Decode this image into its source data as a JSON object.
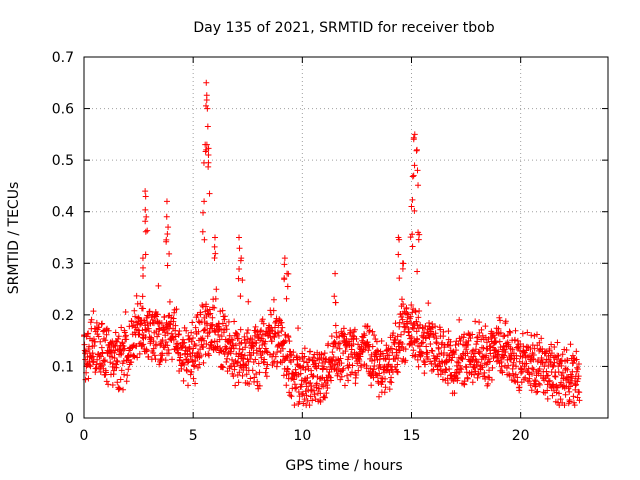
{
  "chart_data": {
    "type": "scatter",
    "title": "Day 135 of 2021, SRMTID for receiver tbob",
    "xlabel": "GPS time / hours",
    "ylabel": "SRMTID / TECUs",
    "xlim": [
      0,
      24
    ],
    "ylim": [
      0,
      0.7
    ],
    "x_ticks": [
      0,
      5,
      10,
      15,
      20
    ],
    "y_ticks": [
      0,
      0.1,
      0.2,
      0.3,
      0.4,
      0.5,
      0.6,
      0.7
    ],
    "x_tick_labels": [
      "0",
      "5",
      "10",
      "15",
      "20"
    ],
    "y_tick_labels": [
      "0",
      "0.1",
      "0.2",
      "0.3",
      "0.4",
      "0.5",
      "0.6",
      "0.7"
    ],
    "grid": true,
    "marker": "+",
    "series": [
      {
        "name": "SRMTID",
        "color": "#ff0000",
        "data_range": [
          0,
          22.7
        ],
        "baseline": [
          [
            0,
            0.12
          ],
          [
            0.5,
            0.14
          ],
          [
            1.0,
            0.13
          ],
          [
            1.5,
            0.1
          ],
          [
            2.0,
            0.13
          ],
          [
            2.5,
            0.18
          ],
          [
            3.0,
            0.16
          ],
          [
            3.5,
            0.15
          ],
          [
            4.0,
            0.17
          ],
          [
            4.5,
            0.13
          ],
          [
            5.0,
            0.12
          ],
          [
            5.5,
            0.17
          ],
          [
            6.0,
            0.17
          ],
          [
            6.5,
            0.14
          ],
          [
            7.0,
            0.12
          ],
          [
            7.5,
            0.11
          ],
          [
            8.0,
            0.12
          ],
          [
            8.5,
            0.15
          ],
          [
            9.0,
            0.16
          ],
          [
            9.5,
            0.08
          ],
          [
            10.0,
            0.07
          ],
          [
            10.5,
            0.08
          ],
          [
            11.0,
            0.08
          ],
          [
            11.5,
            0.13
          ],
          [
            12.0,
            0.12
          ],
          [
            12.5,
            0.12
          ],
          [
            13.0,
            0.13
          ],
          [
            13.5,
            0.1
          ],
          [
            14.0,
            0.11
          ],
          [
            14.5,
            0.16
          ],
          [
            15.0,
            0.17
          ],
          [
            15.5,
            0.15
          ],
          [
            16.0,
            0.13
          ],
          [
            16.5,
            0.12
          ],
          [
            17.0,
            0.1
          ],
          [
            17.5,
            0.12
          ],
          [
            18.0,
            0.13
          ],
          [
            18.5,
            0.12
          ],
          [
            19.0,
            0.14
          ],
          [
            19.5,
            0.13
          ],
          [
            20.0,
            0.1
          ],
          [
            20.5,
            0.11
          ],
          [
            21.0,
            0.1
          ],
          [
            21.5,
            0.09
          ],
          [
            22.0,
            0.08
          ],
          [
            22.7,
            0.08
          ]
        ],
        "peaks": [
          [
            2.7,
            0.31
          ],
          [
            2.8,
            0.44
          ],
          [
            2.85,
            0.39
          ],
          [
            3.8,
            0.42
          ],
          [
            3.85,
            0.37
          ],
          [
            5.5,
            0.42
          ],
          [
            5.55,
            0.53
          ],
          [
            5.6,
            0.65
          ],
          [
            5.65,
            0.6
          ],
          [
            5.7,
            0.51
          ],
          [
            6.0,
            0.35
          ],
          [
            7.1,
            0.35
          ],
          [
            7.2,
            0.31
          ],
          [
            9.2,
            0.31
          ],
          [
            9.3,
            0.28
          ],
          [
            11.5,
            0.28
          ],
          [
            14.4,
            0.35
          ],
          [
            14.6,
            0.3
          ],
          [
            15.0,
            0.41
          ],
          [
            15.1,
            0.47
          ],
          [
            15.15,
            0.55
          ],
          [
            15.25,
            0.52
          ],
          [
            15.3,
            0.36
          ]
        ]
      }
    ]
  }
}
